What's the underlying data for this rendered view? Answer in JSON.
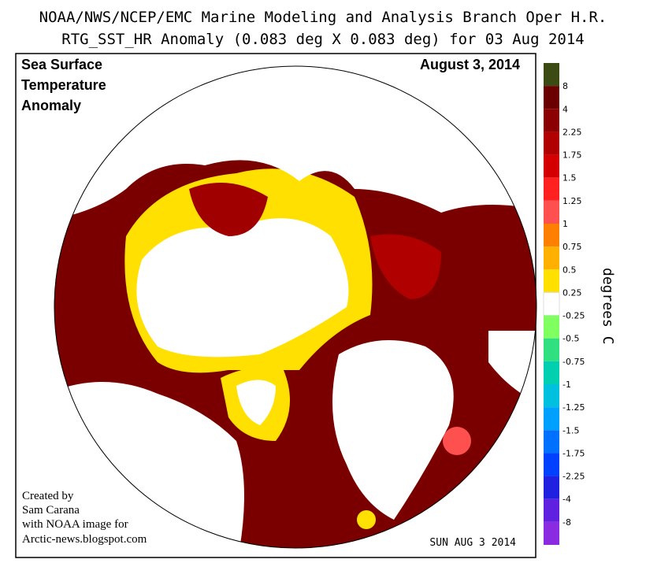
{
  "header": {
    "title_line1": "NOAA/NWS/NCEP/EMC Marine Modeling and Analysis Branch Oper H.R.",
    "title_line2": "RTG_SST_HR Anomaly (0.083 deg X 0.083 deg) for 03 Aug 2014"
  },
  "map": {
    "label_lines": [
      "Sea Surface",
      "Temperature",
      "Anomaly"
    ],
    "date_label": "August 3, 2014",
    "credit_lines": [
      "Created by",
      "Sam Carana",
      "with NOAA image for",
      "Arctic-news.blogspot.com"
    ],
    "stamp": "SUN AUG 3 2014"
  },
  "legend": {
    "unit": "degrees C",
    "labels": [
      8,
      4,
      2.25,
      1.75,
      1.5,
      1.25,
      1,
      0.75,
      0.5,
      0.25,
      -0.25,
      -0.5,
      -0.75,
      -1,
      -1.25,
      -1.5,
      -1.75,
      -2.25,
      -4,
      -8
    ],
    "colors": [
      "#3c4a14",
      "#6b0000",
      "#8b0000",
      "#b00000",
      "#d40000",
      "#ff2020",
      "#ff5050",
      "#ff8000",
      "#ffb000",
      "#ffe000",
      "#ffffff",
      "#80ff60",
      "#30e080",
      "#00d0b0",
      "#00c0e0",
      "#00a0ff",
      "#0070ff",
      "#0040ff",
      "#2020e0",
      "#6020e0",
      "#8a2be2"
    ]
  }
}
